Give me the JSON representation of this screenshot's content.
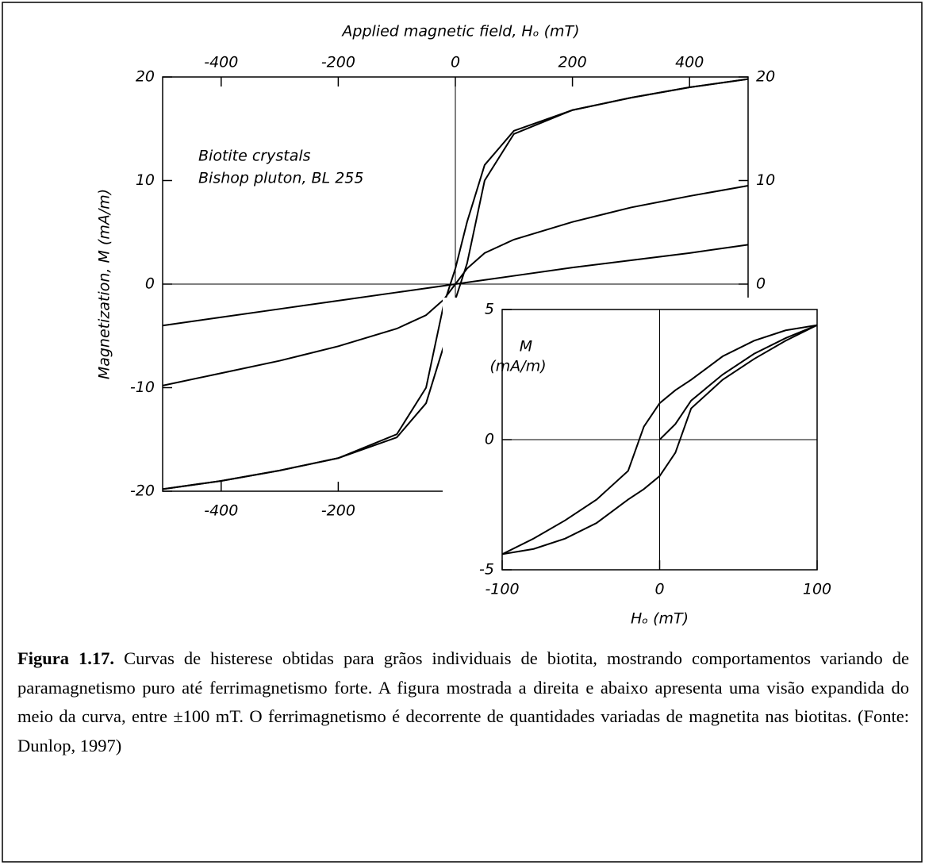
{
  "chart_data": [
    {
      "type": "line",
      "xlabel": "Applied magnetic field, Hₒ (mT)",
      "ylabel": "Magnetization, M (mA/m)",
      "annotations": [
        "Biotite crystals",
        "Bishop pluton, BL 255"
      ],
      "x": [
        -500,
        -400,
        -300,
        -200,
        -100,
        -50,
        -20,
        0,
        20,
        50,
        100,
        200,
        300,
        400,
        500
      ],
      "series": [
        {
          "color": "#000000",
          "values": [
            -19.8,
            -19,
            -18,
            -16.8,
            -14.5,
            -10,
            -2,
            1.5,
            6,
            11.5,
            14.8,
            16.8,
            18,
            19,
            19.8
          ]
        },
        {
          "color": "#000000",
          "values": [
            -19.8,
            -19,
            -18,
            -16.8,
            -14.8,
            -11.5,
            -6,
            -1.5,
            2,
            10,
            14.5,
            16.8,
            18,
            19,
            19.8
          ]
        },
        {
          "color": "#000000",
          "values": [
            -9.8,
            -8.6,
            -7.4,
            -6,
            -4.3,
            -3,
            -1.5,
            0,
            1.5,
            3,
            4.3,
            6,
            7.4,
            8.5,
            9.5
          ]
        },
        {
          "color": "#000000",
          "values": [
            -4,
            -3.2,
            -2.4,
            -1.6,
            -0.8,
            -0.4,
            -0.16,
            0,
            0.16,
            0.4,
            0.8,
            1.6,
            2.3,
            3,
            3.8
          ]
        }
      ],
      "xlim": [
        -500,
        500
      ],
      "xticks": [
        -400,
        -200,
        0,
        200,
        400
      ],
      "ylim": [
        -20,
        20
      ],
      "yticks": [
        -20,
        -10,
        0,
        10,
        20
      ],
      "y2lim": [
        -20,
        20
      ],
      "y2ticks": [
        0,
        10,
        20
      ]
    },
    {
      "type": "line",
      "xlabel": "Hₒ (mT)",
      "ylabel": [
        "M",
        "(mA/m)"
      ],
      "x": [
        -100,
        -80,
        -60,
        -40,
        -20,
        -10,
        0,
        10,
        20,
        40,
        60,
        80,
        100
      ],
      "series": [
        {
          "color": "#000000",
          "values": [
            -4.4,
            -3.8,
            -3.1,
            -2.3,
            -1.2,
            0.5,
            1.4,
            1.9,
            2.3,
            3.2,
            3.8,
            4.2,
            4.4
          ]
        },
        {
          "color": "#000000",
          "values": [
            -4.4,
            -4.2,
            -3.8,
            -3.2,
            -2.3,
            -1.9,
            -1.4,
            -0.5,
            1.2,
            2.3,
            3.1,
            3.8,
            4.4
          ]
        },
        {
          "color": "#000000",
          "values": [
            null,
            null,
            null,
            null,
            null,
            null,
            0,
            0.6,
            1.5,
            2.5,
            3.3,
            3.9,
            4.4
          ]
        }
      ],
      "xlim": [
        -100,
        100
      ],
      "xticks": [
        -100,
        0,
        100
      ],
      "ylim": [
        -5,
        5
      ],
      "yticks": [
        -5,
        0,
        5
      ]
    }
  ],
  "caption": {
    "label": "Figura 1.17.",
    "text": "Curvas de histerese obtidas para grãos individuais de biotita, mostrando comportamentos variando de paramagnetismo puro até ferrimagnetismo forte. A figura mostrada a direita e abaixo apresenta uma visão expandida do meio da curva, entre ±100 mT. O ferrimagnetismo é decorrente de quantidades variadas de magnetita nas biotitas. (Fonte: Dunlop, 1997)"
  }
}
